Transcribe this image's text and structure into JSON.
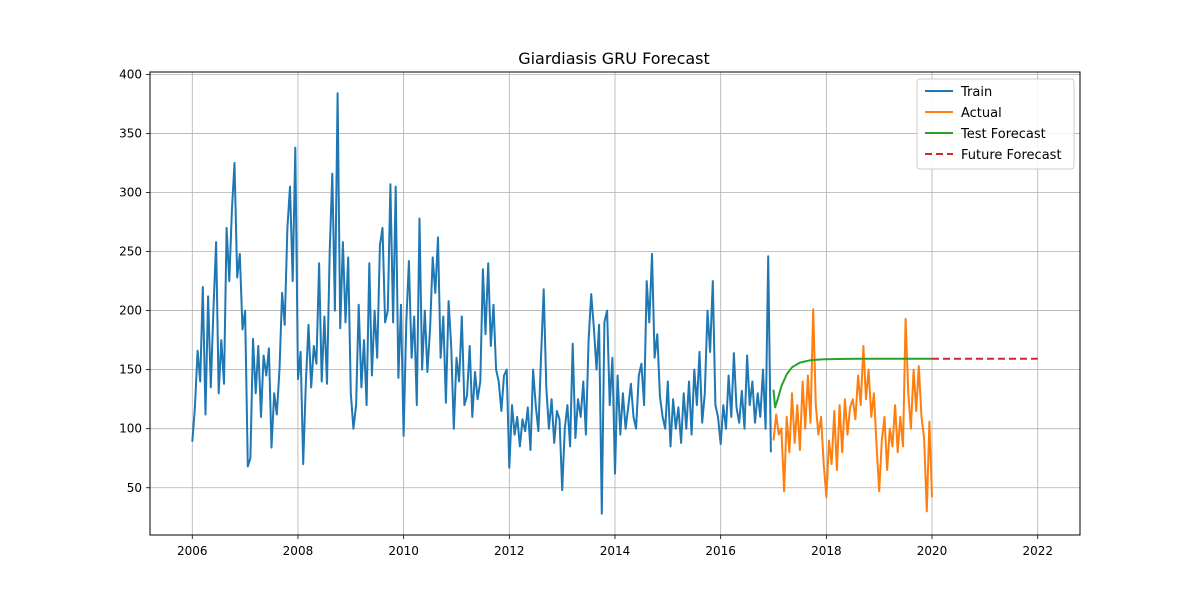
{
  "chart_data": {
    "type": "line",
    "title": "Giardiasis GRU Forecast",
    "xlabel": "",
    "ylabel": "",
    "xlim": [
      2005.2,
      2022.8
    ],
    "ylim": [
      10,
      402
    ],
    "x_ticks": [
      2006,
      2008,
      2010,
      2012,
      2014,
      2016,
      2018,
      2020,
      2022
    ],
    "y_ticks": [
      50,
      100,
      150,
      200,
      250,
      300,
      350,
      400
    ],
    "grid": true,
    "legend_position": "top-right",
    "series": [
      {
        "name": "Train",
        "color": "#1f77b4",
        "style": "solid",
        "points": [
          [
            2006.0,
            89
          ],
          [
            2006.05,
            118
          ],
          [
            2006.1,
            166
          ],
          [
            2006.15,
            140
          ],
          [
            2006.2,
            220
          ],
          [
            2006.25,
            112
          ],
          [
            2006.3,
            212
          ],
          [
            2006.35,
            135
          ],
          [
            2006.4,
            200
          ],
          [
            2006.45,
            258
          ],
          [
            2006.5,
            130
          ],
          [
            2006.55,
            175
          ],
          [
            2006.6,
            138
          ],
          [
            2006.65,
            270
          ],
          [
            2006.7,
            225
          ],
          [
            2006.75,
            285
          ],
          [
            2006.8,
            325
          ],
          [
            2006.85,
            228
          ],
          [
            2006.9,
            248
          ],
          [
            2006.95,
            184
          ],
          [
            2007.0,
            200
          ],
          [
            2007.05,
            68
          ],
          [
            2007.1,
            75
          ],
          [
            2007.15,
            176
          ],
          [
            2007.2,
            130
          ],
          [
            2007.25,
            170
          ],
          [
            2007.3,
            110
          ],
          [
            2007.35,
            162
          ],
          [
            2007.4,
            145
          ],
          [
            2007.45,
            168
          ],
          [
            2007.5,
            84
          ],
          [
            2007.55,
            130
          ],
          [
            2007.6,
            112
          ],
          [
            2007.65,
            150
          ],
          [
            2007.7,
            215
          ],
          [
            2007.75,
            188
          ],
          [
            2007.8,
            270
          ],
          [
            2007.85,
            305
          ],
          [
            2007.9,
            225
          ],
          [
            2007.95,
            338
          ],
          [
            2008.0,
            142
          ],
          [
            2008.05,
            165
          ],
          [
            2008.1,
            70
          ],
          [
            2008.15,
            140
          ],
          [
            2008.2,
            188
          ],
          [
            2008.25,
            135
          ],
          [
            2008.3,
            170
          ],
          [
            2008.35,
            155
          ],
          [
            2008.4,
            240
          ],
          [
            2008.45,
            140
          ],
          [
            2008.5,
            195
          ],
          [
            2008.55,
            138
          ],
          [
            2008.6,
            250
          ],
          [
            2008.65,
            316
          ],
          [
            2008.7,
            200
          ],
          [
            2008.75,
            384
          ],
          [
            2008.8,
            185
          ],
          [
            2008.85,
            258
          ],
          [
            2008.9,
            190
          ],
          [
            2008.95,
            245
          ],
          [
            2009.0,
            130
          ],
          [
            2009.05,
            100
          ],
          [
            2009.1,
            120
          ],
          [
            2009.15,
            205
          ],
          [
            2009.2,
            135
          ],
          [
            2009.25,
            175
          ],
          [
            2009.3,
            120
          ],
          [
            2009.35,
            240
          ],
          [
            2009.4,
            145
          ],
          [
            2009.45,
            200
          ],
          [
            2009.5,
            160
          ],
          [
            2009.55,
            255
          ],
          [
            2009.6,
            270
          ],
          [
            2009.65,
            190
          ],
          [
            2009.7,
            200
          ],
          [
            2009.75,
            307
          ],
          [
            2009.8,
            190
          ],
          [
            2009.85,
            305
          ],
          [
            2009.9,
            143
          ],
          [
            2009.95,
            205
          ],
          [
            2010.0,
            94
          ],
          [
            2010.05,
            190
          ],
          [
            2010.1,
            242
          ],
          [
            2010.15,
            160
          ],
          [
            2010.2,
            195
          ],
          [
            2010.25,
            120
          ],
          [
            2010.3,
            278
          ],
          [
            2010.35,
            150
          ],
          [
            2010.4,
            200
          ],
          [
            2010.45,
            148
          ],
          [
            2010.5,
            185
          ],
          [
            2010.55,
            245
          ],
          [
            2010.6,
            215
          ],
          [
            2010.65,
            262
          ],
          [
            2010.7,
            160
          ],
          [
            2010.75,
            195
          ],
          [
            2010.8,
            122
          ],
          [
            2010.85,
            208
          ],
          [
            2010.9,
            170
          ],
          [
            2010.95,
            100
          ],
          [
            2011.0,
            160
          ],
          [
            2011.05,
            140
          ],
          [
            2011.1,
            195
          ],
          [
            2011.15,
            120
          ],
          [
            2011.2,
            128
          ],
          [
            2011.25,
            170
          ],
          [
            2011.3,
            110
          ],
          [
            2011.35,
            148
          ],
          [
            2011.4,
            125
          ],
          [
            2011.45,
            140
          ],
          [
            2011.5,
            235
          ],
          [
            2011.55,
            180
          ],
          [
            2011.6,
            240
          ],
          [
            2011.65,
            170
          ],
          [
            2011.7,
            205
          ],
          [
            2011.75,
            150
          ],
          [
            2011.8,
            140
          ],
          [
            2011.85,
            115
          ],
          [
            2011.9,
            145
          ],
          [
            2011.95,
            150
          ],
          [
            2012.0,
            67
          ],
          [
            2012.05,
            120
          ],
          [
            2012.1,
            95
          ],
          [
            2012.15,
            110
          ],
          [
            2012.2,
            85
          ],
          [
            2012.25,
            108
          ],
          [
            2012.3,
            98
          ],
          [
            2012.35,
            118
          ],
          [
            2012.4,
            82
          ],
          [
            2012.45,
            150
          ],
          [
            2012.5,
            120
          ],
          [
            2012.55,
            98
          ],
          [
            2012.6,
            160
          ],
          [
            2012.65,
            218
          ],
          [
            2012.7,
            135
          ],
          [
            2012.75,
            100
          ],
          [
            2012.8,
            125
          ],
          [
            2012.85,
            88
          ],
          [
            2012.9,
            115
          ],
          [
            2012.95,
            108
          ],
          [
            2013.0,
            48
          ],
          [
            2013.05,
            100
          ],
          [
            2013.1,
            120
          ],
          [
            2013.15,
            85
          ],
          [
            2013.2,
            172
          ],
          [
            2013.25,
            92
          ],
          [
            2013.3,
            125
          ],
          [
            2013.35,
            110
          ],
          [
            2013.4,
            140
          ],
          [
            2013.45,
            95
          ],
          [
            2013.5,
            175
          ],
          [
            2013.55,
            214
          ],
          [
            2013.6,
            185
          ],
          [
            2013.65,
            150
          ],
          [
            2013.7,
            188
          ],
          [
            2013.75,
            28
          ],
          [
            2013.8,
            190
          ],
          [
            2013.85,
            200
          ],
          [
            2013.9,
            120
          ],
          [
            2013.95,
            160
          ],
          [
            2014.0,
            62
          ],
          [
            2014.05,
            145
          ],
          [
            2014.1,
            95
          ],
          [
            2014.15,
            130
          ],
          [
            2014.2,
            100
          ],
          [
            2014.25,
            118
          ],
          [
            2014.3,
            138
          ],
          [
            2014.35,
            110
          ],
          [
            2014.4,
            100
          ],
          [
            2014.45,
            145
          ],
          [
            2014.5,
            155
          ],
          [
            2014.55,
            120
          ],
          [
            2014.6,
            225
          ],
          [
            2014.65,
            190
          ],
          [
            2014.7,
            248
          ],
          [
            2014.75,
            160
          ],
          [
            2014.8,
            180
          ],
          [
            2014.85,
            128
          ],
          [
            2014.9,
            110
          ],
          [
            2014.95,
            100
          ],
          [
            2015.0,
            140
          ],
          [
            2015.05,
            85
          ],
          [
            2015.1,
            125
          ],
          [
            2015.15,
            100
          ],
          [
            2015.2,
            118
          ],
          [
            2015.25,
            88
          ],
          [
            2015.3,
            130
          ],
          [
            2015.35,
            100
          ],
          [
            2015.4,
            140
          ],
          [
            2015.45,
            95
          ],
          [
            2015.5,
            150
          ],
          [
            2015.55,
            120
          ],
          [
            2015.6,
            165
          ],
          [
            2015.65,
            105
          ],
          [
            2015.7,
            130
          ],
          [
            2015.75,
            200
          ],
          [
            2015.8,
            165
          ],
          [
            2015.85,
            225
          ],
          [
            2015.9,
            120
          ],
          [
            2015.95,
            110
          ],
          [
            2016.0,
            87
          ],
          [
            2016.05,
            120
          ],
          [
            2016.1,
            100
          ],
          [
            2016.15,
            145
          ],
          [
            2016.2,
            110
          ],
          [
            2016.25,
            164
          ],
          [
            2016.3,
            118
          ],
          [
            2016.35,
            105
          ],
          [
            2016.4,
            132
          ],
          [
            2016.45,
            100
          ],
          [
            2016.5,
            162
          ],
          [
            2016.55,
            120
          ],
          [
            2016.6,
            140
          ],
          [
            2016.65,
            105
          ],
          [
            2016.7,
            130
          ],
          [
            2016.75,
            110
          ],
          [
            2016.8,
            150
          ],
          [
            2016.85,
            100
          ],
          [
            2016.9,
            246
          ],
          [
            2016.95,
            80
          ]
        ]
      },
      {
        "name": "Actual",
        "color": "#ff7f0e",
        "style": "solid",
        "points": [
          [
            2017.0,
            90
          ],
          [
            2017.05,
            112
          ],
          [
            2017.1,
            95
          ],
          [
            2017.15,
            100
          ],
          [
            2017.2,
            47
          ],
          [
            2017.25,
            110
          ],
          [
            2017.3,
            80
          ],
          [
            2017.35,
            130
          ],
          [
            2017.4,
            88
          ],
          [
            2017.45,
            120
          ],
          [
            2017.5,
            82
          ],
          [
            2017.55,
            140
          ],
          [
            2017.6,
            100
          ],
          [
            2017.65,
            145
          ],
          [
            2017.7,
            105
          ],
          [
            2017.75,
            201
          ],
          [
            2017.8,
            120
          ],
          [
            2017.85,
            95
          ],
          [
            2017.9,
            110
          ],
          [
            2017.95,
            70
          ],
          [
            2018.0,
            42
          ],
          [
            2018.05,
            90
          ],
          [
            2018.1,
            70
          ],
          [
            2018.15,
            115
          ],
          [
            2018.2,
            65
          ],
          [
            2018.25,
            120
          ],
          [
            2018.3,
            80
          ],
          [
            2018.35,
            125
          ],
          [
            2018.4,
            95
          ],
          [
            2018.45,
            118
          ],
          [
            2018.5,
            125
          ],
          [
            2018.55,
            108
          ],
          [
            2018.6,
            145
          ],
          [
            2018.65,
            120
          ],
          [
            2018.7,
            170
          ],
          [
            2018.75,
            125
          ],
          [
            2018.8,
            150
          ],
          [
            2018.85,
            110
          ],
          [
            2018.9,
            130
          ],
          [
            2018.95,
            85
          ],
          [
            2019.0,
            47
          ],
          [
            2019.05,
            90
          ],
          [
            2019.1,
            110
          ],
          [
            2019.15,
            65
          ],
          [
            2019.2,
            100
          ],
          [
            2019.25,
            85
          ],
          [
            2019.3,
            120
          ],
          [
            2019.35,
            80
          ],
          [
            2019.4,
            110
          ],
          [
            2019.45,
            85
          ],
          [
            2019.5,
            193
          ],
          [
            2019.55,
            130
          ],
          [
            2019.6,
            100
          ],
          [
            2019.65,
            150
          ],
          [
            2019.7,
            115
          ],
          [
            2019.75,
            153
          ],
          [
            2019.8,
            110
          ],
          [
            2019.85,
            92
          ],
          [
            2019.9,
            30
          ],
          [
            2019.95,
            106
          ],
          [
            2020.0,
            42
          ]
        ]
      },
      {
        "name": "Test Forecast",
        "color": "#2ca02c",
        "style": "solid",
        "points": [
          [
            2017.0,
            133
          ],
          [
            2017.03,
            118
          ],
          [
            2017.08,
            125
          ],
          [
            2017.15,
            136
          ],
          [
            2017.25,
            146
          ],
          [
            2017.35,
            152
          ],
          [
            2017.5,
            156
          ],
          [
            2017.7,
            158
          ],
          [
            2017.9,
            158.7
          ],
          [
            2018.2,
            159
          ],
          [
            2018.6,
            159.2
          ],
          [
            2019.0,
            159.3
          ],
          [
            2019.5,
            159.3
          ],
          [
            2020.0,
            159.3
          ]
        ]
      },
      {
        "name": "Future Forecast",
        "color": "#d62728",
        "style": "dashed",
        "points": [
          [
            2020.0,
            159.3
          ],
          [
            2021.0,
            159.3
          ],
          [
            2022.0,
            159.3
          ]
        ]
      }
    ]
  }
}
